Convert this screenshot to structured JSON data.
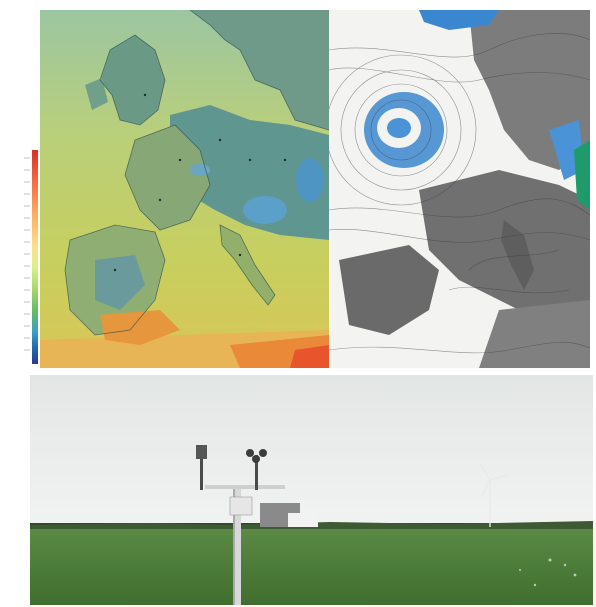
{
  "panels": [
    {
      "name": "temperature-map",
      "description_icon": "europe-temperature-map"
    },
    {
      "name": "wind-streamline-map",
      "description_icon": "europe-wind-streamlines"
    },
    {
      "name": "weather-station-photo",
      "description_icon": "weather-station"
    }
  ],
  "colors": {
    "sea_green": "#c2cf6e",
    "land_blue": "#6b9fae",
    "warm_orange": "#e6922f",
    "hot_red": "#e0442b",
    "sky": "#e9edec",
    "grass": "#4d7a3a",
    "stream_bg": "#f3f3f1",
    "cyclone_blue": "#3a86cf"
  },
  "colorbar": {
    "stops": [
      "#d73027",
      "#f46d43",
      "#fdae61",
      "#fee08b",
      "#d9ef8b",
      "#a6d96a",
      "#66bd63",
      "#3aa0c8",
      "#2166ac",
      "#313695"
    ]
  }
}
